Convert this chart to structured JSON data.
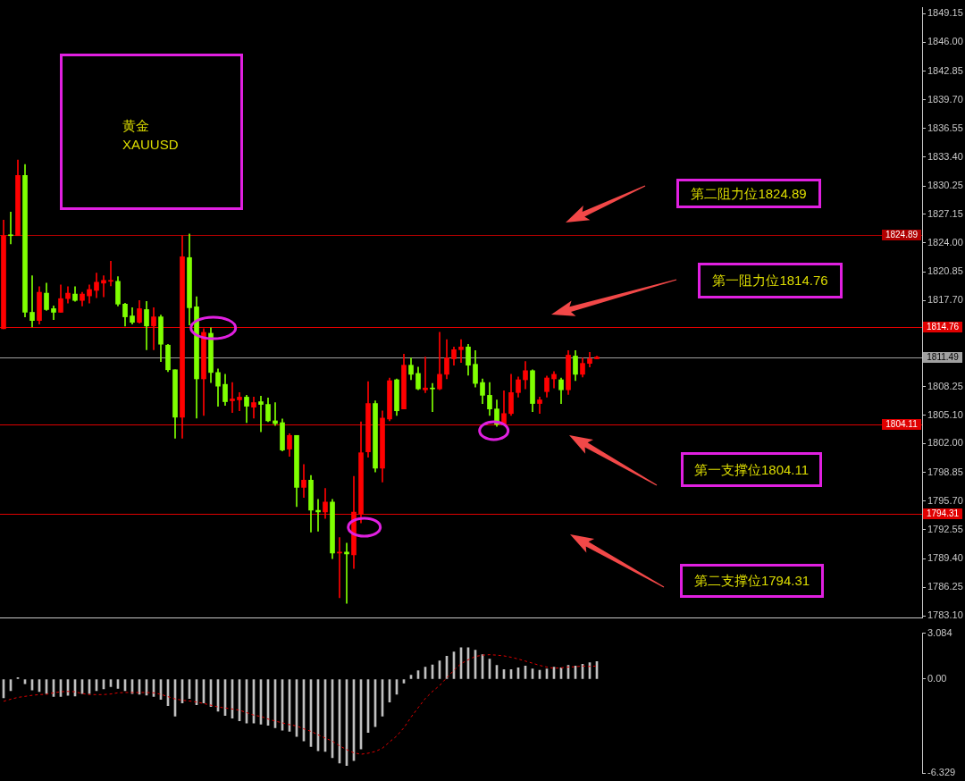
{
  "chart_data": [
    {
      "type": "candlestick",
      "title": "黄金",
      "subtitle": "XAUUSD",
      "categories": [
        null,
        null,
        null,
        null,
        null,
        null,
        null,
        null,
        null,
        null,
        null,
        null,
        null,
        null,
        null,
        null,
        null,
        null,
        null,
        null,
        null,
        null,
        null,
        null,
        null,
        null,
        null,
        null,
        null,
        null,
        null,
        null,
        null,
        null,
        null,
        null,
        null,
        null,
        null,
        null,
        null,
        null,
        null,
        null,
        null,
        null,
        null,
        null,
        null,
        null,
        null,
        null,
        null,
        null,
        null,
        null,
        null,
        null,
        null,
        null,
        null,
        null,
        null,
        null,
        null,
        null,
        null,
        null,
        null,
        null,
        null,
        null,
        null,
        null,
        null,
        null,
        null,
        null,
        null,
        null,
        null,
        null,
        null,
        null,
        null,
        null,
        null,
        null,
        null,
        null,
        null,
        null,
        null,
        null,
        null,
        null,
        null,
        null,
        null,
        null,
        null,
        null,
        null,
        null,
        null,
        null,
        null,
        null,
        null,
        null,
        null,
        null,
        null,
        null,
        null,
        null,
        null,
        null,
        null,
        null,
        null,
        null,
        null,
        null,
        null,
        null,
        null,
        null,
        null
      ],
      "ohlc": [
        [
          1814.6,
          1826.5,
          1814.6,
          1824.8
        ],
        [
          1824.9,
          1827.4,
          1823.9,
          1824.8
        ],
        [
          1824.8,
          1833.1,
          1824.8,
          1831.4
        ],
        [
          1831.4,
          1832.6,
          1815.9,
          1816.4
        ],
        [
          1816.4,
          1820.4,
          1814.8,
          1815.5
        ],
        [
          1815.5,
          1819.2,
          1815.1,
          1818.6
        ],
        [
          1818.5,
          1819.6,
          1816.6,
          1816.7
        ],
        [
          1816.8,
          1817.1,
          1815.6,
          1816.4
        ],
        [
          1816.4,
          1819.4,
          1816.4,
          1817.9
        ],
        [
          1817.9,
          1819.2,
          1817.4,
          1818.5
        ],
        [
          1818.4,
          1819.2,
          1817.6,
          1817.7
        ],
        [
          1817.7,
          1818.6,
          1817.1,
          1818.4
        ],
        [
          1818.2,
          1819.4,
          1817.4,
          1818.9
        ],
        [
          1818.8,
          1820.7,
          1818.0,
          1819.7
        ],
        [
          1819.6,
          1820.4,
          1818.1,
          1819.9
        ],
        [
          1819.8,
          1822.0,
          1819.3,
          1819.9
        ],
        [
          1819.8,
          1820.3,
          1817.1,
          1817.3
        ],
        [
          1817.3,
          1817.4,
          1814.9,
          1815.9
        ],
        [
          1816.0,
          1816.9,
          1815.1,
          1815.3
        ],
        [
          1815.3,
          1817.7,
          1815.2,
          1816.8
        ],
        [
          1816.7,
          1817.6,
          1812.3,
          1814.9
        ],
        [
          1814.9,
          1816.9,
          1812.3,
          1815.9
        ],
        [
          1815.9,
          1816.1,
          1811.0,
          1812.9
        ],
        [
          1812.8,
          1812.9,
          1809.9,
          1810.1
        ],
        [
          1810.1,
          1810.1,
          1802.6,
          1804.9
        ],
        [
          1804.9,
          1824.8,
          1802.6,
          1822.5
        ],
        [
          1822.4,
          1825.0,
          1815.0,
          1816.9
        ],
        [
          1817.0,
          1818.1,
          1804.8,
          1809.1
        ],
        [
          1809.1,
          1814.6,
          1805.1,
          1814.2
        ],
        [
          1814.1,
          1814.7,
          1808.7,
          1809.8
        ],
        [
          1809.8,
          1810.2,
          1806.1,
          1808.3
        ],
        [
          1808.5,
          1809.6,
          1806.2,
          1806.6
        ],
        [
          1806.7,
          1808.7,
          1805.4,
          1806.9
        ],
        [
          1806.8,
          1807.6,
          1805.6,
          1807.1
        ],
        [
          1807.1,
          1807.3,
          1804.3,
          1806.1
        ],
        [
          1806.0,
          1807.1,
          1804.8,
          1806.5
        ],
        [
          1806.6,
          1807.2,
          1803.3,
          1806.3
        ],
        [
          1806.3,
          1807.0,
          1804.4,
          1804.5
        ],
        [
          1804.5,
          1806.5,
          1804.0,
          1804.2
        ],
        [
          1804.3,
          1804.7,
          1801.2,
          1801.3
        ],
        [
          1801.4,
          1803.1,
          1800.6,
          1802.9
        ],
        [
          1802.9,
          1802.9,
          1795.1,
          1797.2
        ],
        [
          1797.2,
          1799.7,
          1796.1,
          1798.0
        ],
        [
          1798.0,
          1798.5,
          1792.3,
          1794.7
        ],
        [
          1794.7,
          1795.9,
          1792.4,
          1794.5
        ],
        [
          1794.5,
          1797.1,
          1793.8,
          1795.6
        ],
        [
          1795.6,
          1795.9,
          1789.4,
          1790.0
        ],
        [
          1790.0,
          1791.7,
          1785.1,
          1790.1
        ],
        [
          1790.1,
          1791.1,
          1784.5,
          1789.9
        ],
        [
          1789.8,
          1798.4,
          1788.3,
          1794.5
        ],
        [
          1794.3,
          1804.4,
          1793.3,
          1801.0
        ],
        [
          1801.1,
          1808.8,
          1800.5,
          1806.4
        ],
        [
          1806.4,
          1806.7,
          1798.9,
          1799.3
        ],
        [
          1799.3,
          1805.6,
          1797.8,
          1804.8
        ],
        [
          1804.7,
          1809.2,
          1804.5,
          1808.9
        ],
        [
          1809.0,
          1809.1,
          1805.1,
          1805.6
        ],
        [
          1805.8,
          1811.8,
          1805.8,
          1810.6
        ],
        [
          1810.6,
          1811.4,
          1809.0,
          1809.6
        ],
        [
          1809.7,
          1810.4,
          1807.9,
          1808.0
        ],
        [
          1807.9,
          1811.5,
          1807.6,
          1808.1
        ],
        [
          1808.1,
          1808.6,
          1805.5,
          1808.0
        ],
        [
          1808.0,
          1814.2,
          1807.9,
          1809.6
        ],
        [
          1809.6,
          1813.4,
          1809.1,
          1811.4
        ],
        [
          1811.3,
          1812.6,
          1810.6,
          1812.3
        ],
        [
          1812.3,
          1813.4,
          1810.9,
          1812.6
        ],
        [
          1812.6,
          1812.9,
          1809.5,
          1810.6
        ],
        [
          1810.7,
          1812.2,
          1808.2,
          1808.6
        ],
        [
          1808.7,
          1809.1,
          1806.4,
          1807.3
        ],
        [
          1807.3,
          1808.7,
          1805.1,
          1805.8
        ],
        [
          1805.8,
          1806.8,
          1803.9,
          1804.1
        ],
        [
          1804.1,
          1807.8,
          1804.1,
          1805.3
        ],
        [
          1805.3,
          1809.6,
          1805.1,
          1807.6
        ],
        [
          1807.6,
          1809.3,
          1807.1,
          1809.0
        ],
        [
          1809.0,
          1811.0,
          1808.0,
          1810.0
        ],
        [
          1810.0,
          1810.1,
          1805.5,
          1806.4
        ],
        [
          1806.4,
          1807.1,
          1805.3,
          1806.8
        ],
        [
          1807.7,
          1809.4,
          1807.1,
          1809.2
        ],
        [
          1809.1,
          1809.9,
          1808.1,
          1809.6
        ],
        [
          1809.0,
          1809.2,
          1806.4,
          1807.9
        ],
        [
          1807.9,
          1812.2,
          1807.4,
          1811.7
        ],
        [
          1811.6,
          1812.2,
          1808.9,
          1809.6
        ],
        [
          1809.6,
          1811.4,
          1809.3,
          1810.8
        ],
        [
          1810.8,
          1812.0,
          1810.4,
          1811.3
        ],
        [
          1811.3,
          1811.6,
          1811.3,
          1811.5
        ],
        null,
        null,
        null,
        null,
        null,
        null,
        null,
        null,
        null,
        null,
        null,
        null,
        null,
        null,
        null,
        null,
        null,
        null,
        null,
        null,
        null,
        null,
        null,
        null,
        null,
        null,
        null,
        null,
        null,
        null,
        null,
        null,
        null,
        null,
        null,
        null,
        null,
        null,
        null,
        null,
        null,
        null,
        null,
        null,
        null
      ],
      "colors": [
        "#ff0000",
        "#7fff00",
        "#ff0000",
        "#7fff00",
        "#7fff00",
        "#ff0000",
        "#7fff00",
        "#7fff00",
        "#ff0000",
        "#ff0000",
        "#7fff00",
        "#ff0000",
        "#ff0000",
        "#ff0000",
        "#ff0000",
        "#ff0000",
        "#7fff00",
        "#7fff00",
        "#7fff00",
        "#ff0000",
        "#7fff00",
        "#ff0000",
        "#7fff00",
        "#7fff00",
        "#7fff00",
        "#ff0000",
        "#7fff00",
        "#7fff00",
        "#ff0000",
        "#7fff00",
        "#7fff00",
        "#7fff00",
        "#ff0000",
        "#ff0000",
        "#7fff00",
        "#ff0000",
        "#7fff00",
        "#7fff00",
        "#7fff00",
        "#7fff00",
        "#ff0000",
        "#7fff00",
        "#ff0000",
        "#7fff00",
        "#7fff00",
        "#ff0000",
        "#7fff00",
        "#ff0000",
        "#7fff00",
        "#ff0000",
        "#ff0000",
        "#ff0000",
        "#7fff00",
        "#ff0000",
        "#ff0000",
        "#7fff00",
        "#ff0000",
        "#7fff00",
        "#7fff00",
        "#ff0000",
        "#7fff00",
        "#ff0000",
        "#ff0000",
        "#ff0000",
        "#ff0000",
        "#7fff00",
        "#7fff00",
        "#7fff00",
        "#7fff00",
        "#7fff00",
        "#ff0000",
        "#ff0000",
        "#ff0000",
        "#ff0000",
        "#7fff00",
        "#ff0000",
        "#ff0000",
        "#ff0000",
        "#7fff00",
        "#ff0000",
        "#7fff00",
        "#ff0000",
        "#ff0000",
        "#ff0000",
        null,
        null,
        null,
        null,
        null,
        null,
        null,
        null,
        null,
        null,
        null,
        null,
        null,
        null,
        null,
        null,
        null,
        null,
        null,
        null,
        null,
        null,
        null,
        null,
        null,
        null,
        null,
        null,
        null,
        null,
        null,
        null,
        null,
        null,
        null,
        null,
        null,
        null,
        null,
        null,
        null,
        null,
        null,
        null,
        null
      ],
      "ylim": [
        1782.9,
        1849.8
      ],
      "yticks": [
        1849.15,
        {
          "value": 1846,
          "label": "1846.00"
        },
        1842.85,
        {
          "value": 1839.7,
          "label": "1839.70"
        },
        1836.55,
        {
          "value": 1833.4,
          "label": "1833.40"
        },
        1830.25,
        1827.15,
        {
          "value": 1824,
          "label": "1824.00"
        },
        1820.85,
        {
          "value": 1817.7,
          "label": "1817.70"
        },
        1808.25,
        {
          "value": 1805.1,
          "label": "1805.10"
        },
        {
          "value": 1802,
          "label": "1802.00"
        },
        1798.85,
        {
          "value": 1795.7,
          "label": "1795.70"
        },
        1792.55,
        {
          "value": 1789.4,
          "label": "1789.40"
        },
        1786.25,
        {
          "value": 1783.1,
          "label": "1783.10"
        }
      ],
      "tick_labels": "y",
      "ref_lines": [
        {
          "axis": "y",
          "value": 1824.89,
          "label": "1824.89",
          "color": "#b00000"
        },
        {
          "axis": "y",
          "value": 1814.76,
          "label": "1814.76",
          "color": "#e00000"
        },
        {
          "axis": "y",
          "value": 1811.49,
          "label": "1811.49",
          "color": "#a0a0a0"
        },
        {
          "axis": "y",
          "value": 1804.11,
          "label": "1804.11",
          "color": "#e00000"
        },
        {
          "axis": "y",
          "value": 1794.31,
          "label": "1794.31",
          "color": "#e00000"
        }
      ],
      "annotations": [
        "第二阻力位1824.89",
        "第一阻力位1814.76",
        "第一支撑位1804.11",
        "第二支撑位1794.31"
      ]
    },
    {
      "type": "bar",
      "categories": [
        null,
        null,
        null,
        null,
        null,
        null,
        null,
        null,
        null,
        null,
        null,
        null,
        null,
        null,
        null,
        null,
        null,
        null,
        null,
        null,
        null,
        null,
        null,
        null,
        null,
        null,
        null,
        null,
        null,
        null,
        null,
        null,
        null,
        null,
        null,
        null,
        null,
        null,
        null,
        null,
        null,
        null,
        null,
        null,
        null,
        null,
        null,
        null,
        null,
        null,
        null,
        null,
        null,
        null,
        null,
        null,
        null,
        null,
        null,
        null,
        null,
        null,
        null,
        null,
        null,
        null,
        null,
        null,
        null,
        null,
        null,
        null,
        null,
        null,
        null,
        null,
        null,
        null,
        null,
        null,
        null,
        null,
        null,
        null,
        null,
        null,
        null,
        null,
        null,
        null,
        null,
        null,
        null,
        null,
        null,
        null,
        null,
        null,
        null,
        null,
        null,
        null,
        null,
        null,
        null,
        null,
        null,
        null,
        null,
        null,
        null,
        null,
        null,
        null,
        null,
        null,
        null,
        null,
        null,
        null,
        null,
        null,
        null,
        null,
        null,
        null,
        null,
        null,
        null
      ],
      "series": [
        {
          "type": "bar",
          "color": "#c0c0c0",
          "values": [
            -1.26,
            -0.78,
            0.1,
            -0.31,
            -0.73,
            -0.83,
            -0.97,
            -1.16,
            -1.16,
            -1.09,
            -1.14,
            -0.97,
            -0.97,
            -0.78,
            -0.66,
            -0.5,
            -0.62,
            -0.78,
            -0.97,
            -1.02,
            -1.07,
            -1.16,
            -1.37,
            -1.78,
            -2.49,
            -1.61,
            -1.3,
            -1.73,
            -1.61,
            -1.85,
            -2.16,
            -2.44,
            -2.63,
            -2.8,
            -2.96,
            -2.96,
            -3.03,
            -3.1,
            -3.27,
            -3.44,
            -3.51,
            -3.86,
            -4.15,
            -4.53,
            -4.81,
            -4.86,
            -5.28,
            -5.64,
            -5.81,
            -5.47,
            -4.69,
            -3.58,
            -3.2,
            -2.49,
            -1.54,
            -1.02,
            -0.26,
            0.26,
            0.57,
            0.81,
            0.95,
            1.23,
            1.54,
            1.82,
            2.11,
            2.11,
            1.94,
            1.64,
            1.35,
            0.92,
            0.64,
            0.64,
            0.76,
            0.88,
            0.69,
            0.59,
            0.69,
            0.81,
            0.76,
            0.92,
            0.88,
            1.0,
            1.11,
            1.18,
            null,
            null,
            null,
            null,
            null,
            null,
            null,
            null,
            null,
            null,
            null,
            null,
            null,
            null,
            null,
            null,
            null,
            null,
            null,
            null,
            null,
            null,
            null,
            null,
            null,
            null,
            null,
            null,
            null,
            null,
            null,
            null,
            null,
            null,
            null,
            null,
            null,
            null,
            null,
            null,
            null,
            null,
            null,
            null,
            null
          ]
        },
        {
          "type": "line",
          "color": "#e00000",
          "line_style": "dashed",
          "marker": "none",
          "values": [
            -1.49,
            -1.35,
            -1.23,
            -1.16,
            -1.09,
            -1.04,
            -1.02,
            -0.92,
            -0.85,
            -0.83,
            -0.85,
            -0.97,
            -1.04,
            -1.04,
            -1.04,
            -1.0,
            -0.92,
            -0.9,
            -0.9,
            -0.9,
            -0.9,
            -0.92,
            -1.02,
            -1.18,
            -1.33,
            -1.42,
            -1.47,
            -1.54,
            -1.64,
            -1.75,
            -1.87,
            -1.94,
            -2.01,
            -2.09,
            -2.25,
            -2.42,
            -2.51,
            -2.68,
            -2.82,
            -2.94,
            -3.06,
            -3.15,
            -3.34,
            -3.51,
            -3.74,
            -3.96,
            -4.17,
            -4.48,
            -4.74,
            -4.95,
            -5.05,
            -4.98,
            -4.86,
            -4.64,
            -4.22,
            -3.82,
            -3.27,
            -2.56,
            -1.92,
            -1.3,
            -0.83,
            -0.43,
            0.09,
            0.59,
            1.04,
            1.3,
            1.52,
            1.61,
            1.64,
            1.61,
            1.56,
            1.47,
            1.35,
            1.21,
            1.07,
            0.92,
            0.81,
            0.73,
            0.76,
            0.81,
            0.83,
            0.88,
            0.85,
            0.88,
            null,
            null,
            null,
            null,
            null,
            null,
            null,
            null,
            null,
            null,
            null,
            null,
            null,
            null,
            null,
            null,
            null,
            null,
            null,
            null,
            null,
            null,
            null,
            null,
            null,
            null,
            null,
            null,
            null,
            null,
            null,
            null,
            null,
            null,
            null,
            null,
            null,
            null,
            null,
            null,
            null,
            null,
            null,
            null,
            null
          ]
        }
      ],
      "ylim": [
        -6.329,
        3.084
      ],
      "yticks": [
        3.084,
        {
          "value": 0,
          "label": "0.00"
        },
        -6.329
      ],
      "tick_labels": "y"
    }
  ]
}
